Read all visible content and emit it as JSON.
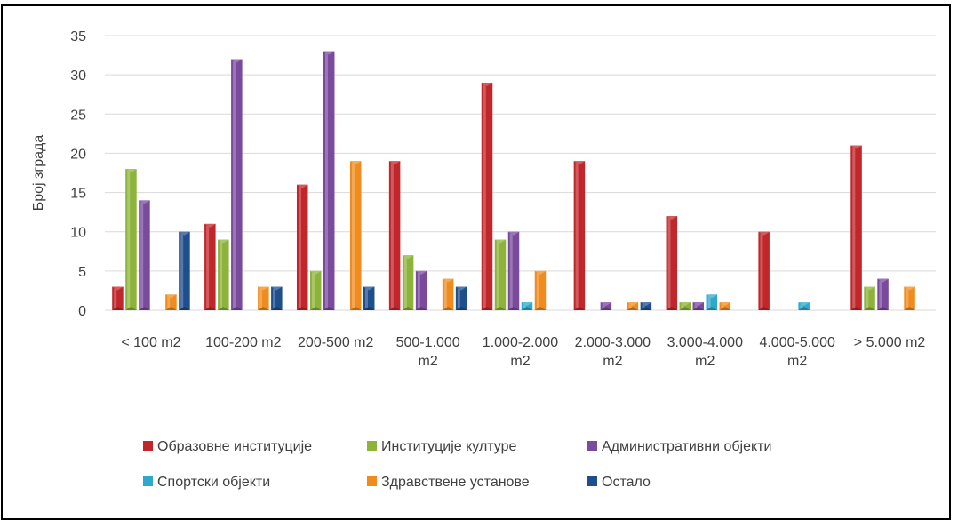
{
  "chart_data": {
    "type": "bar",
    "title": "",
    "xlabel": "",
    "ylabel": "Број зграда",
    "ylim": [
      0,
      35
    ],
    "yticks": [
      0,
      5,
      10,
      15,
      20,
      25,
      30,
      35
    ],
    "grid": true,
    "legend_position": "bottom",
    "categories": [
      [
        "< 100 m2"
      ],
      [
        "100-200 m2"
      ],
      [
        "200-500 m2"
      ],
      [
        "500-1.000",
        "m2"
      ],
      [
        "1.000-2.000",
        "m2"
      ],
      [
        "2.000-3.000",
        "m2"
      ],
      [
        "3.000-4.000",
        "m2"
      ],
      [
        "4.000-5.000",
        "m2"
      ],
      [
        "> 5.000 m2"
      ]
    ],
    "series": [
      {
        "name": "Образовне институције",
        "color": "#c0262a",
        "values": [
          3,
          11,
          16,
          19,
          29,
          19,
          12,
          10,
          21
        ]
      },
      {
        "name": "Институције културе",
        "color": "#8db33a",
        "values": [
          18,
          9,
          5,
          7,
          9,
          0,
          1,
          0,
          3
        ]
      },
      {
        "name": "Административни објекти",
        "color": "#7a4a9c",
        "values": [
          14,
          32,
          33,
          5,
          10,
          1,
          1,
          0,
          4
        ]
      },
      {
        "name": "Спортски објекти",
        "color": "#2ea8cc",
        "values": [
          0,
          0,
          0,
          0,
          1,
          0,
          2,
          1,
          0
        ]
      },
      {
        "name": "Здравствене установе",
        "color": "#f08c1e",
        "values": [
          2,
          3,
          19,
          4,
          5,
          1,
          1,
          0,
          3
        ]
      },
      {
        "name": "Остало",
        "color": "#1f4e8c",
        "values": [
          10,
          3,
          3,
          3,
          0,
          1,
          0,
          0,
          0
        ]
      }
    ]
  }
}
